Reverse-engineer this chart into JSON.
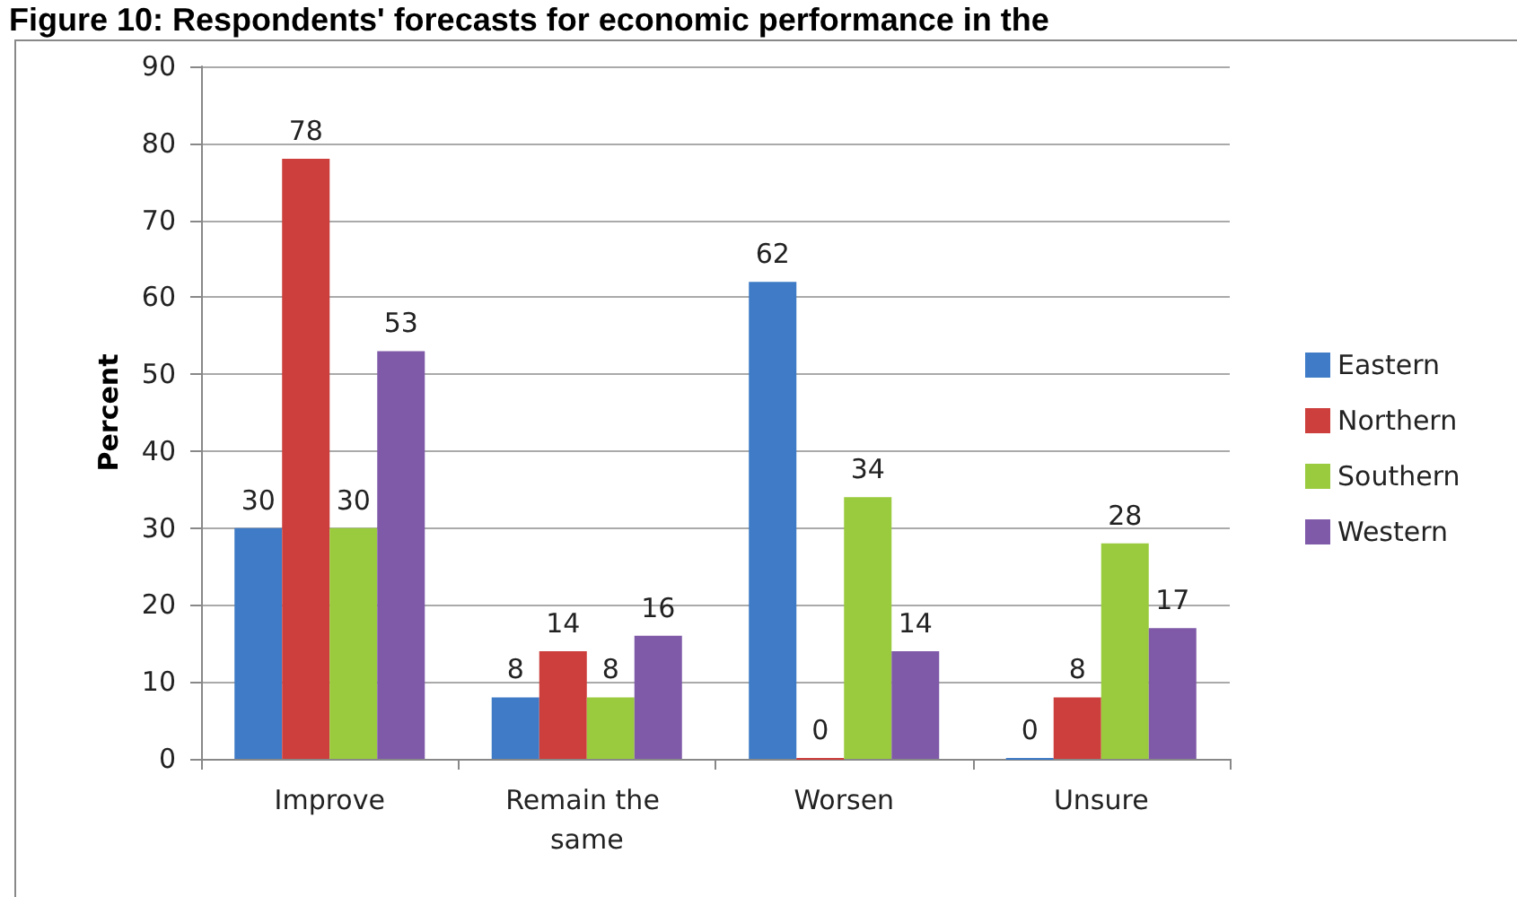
{
  "chart_data": {
    "type": "bar",
    "title": "Figure 10: Respondents' forecasts for economic performance in the",
    "ylabel": "Percent",
    "categories": [
      "Improve",
      "Remain the same",
      "Worsen",
      "Unsure"
    ],
    "series": [
      {
        "name": "Eastern",
        "color": "#3f7bc6",
        "values": [
          30,
          8,
          62,
          0
        ]
      },
      {
        "name": "Northern",
        "color": "#cc3f3c",
        "values": [
          78,
          14,
          0,
          8
        ]
      },
      {
        "name": "Southern",
        "color": "#9acb3e",
        "values": [
          30,
          8,
          34,
          28
        ]
      },
      {
        "name": "Western",
        "color": "#7f5aa8",
        "values": [
          53,
          16,
          14,
          17
        ]
      }
    ],
    "ylim": [
      0,
      90
    ],
    "yticks": [
      0,
      10,
      20,
      30,
      40,
      50,
      60,
      70,
      80,
      90
    ],
    "grid": "y",
    "legend": "right",
    "data_labels": true
  }
}
